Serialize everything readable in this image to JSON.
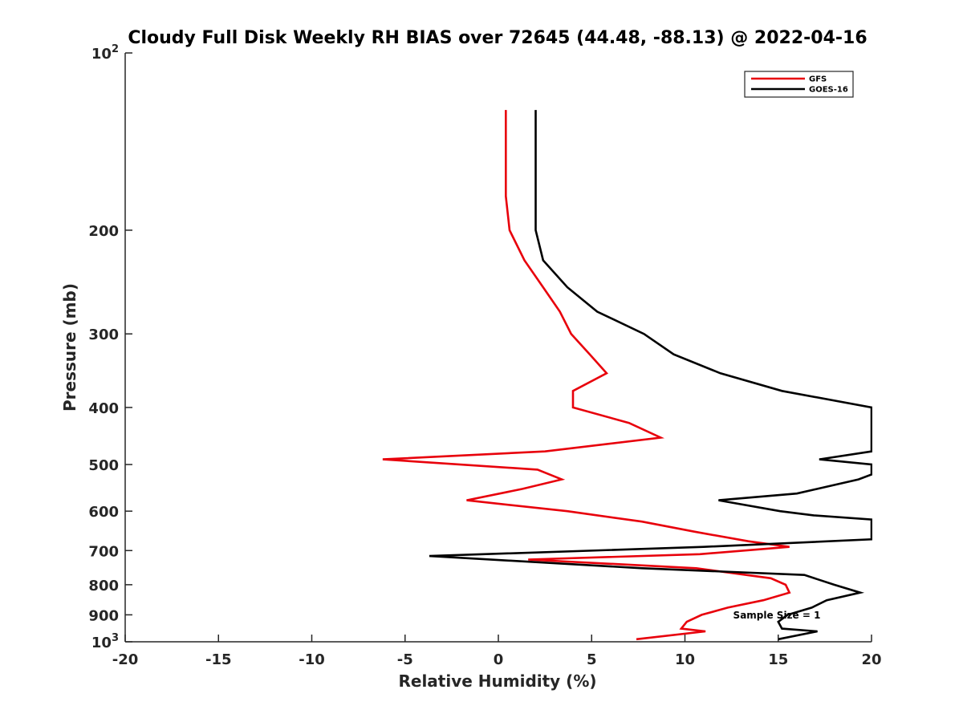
{
  "chart_data": {
    "type": "line",
    "title": "Cloudy Full Disk Weekly RH BIAS over 72645 (44.48, -88.13) @ 2022-04-16",
    "xlabel": "Relative Humidity (%)",
    "ylabel": "Pressure (mb)",
    "xlim": [
      -20,
      20
    ],
    "ylim": [
      100,
      1000
    ],
    "yscale": "log",
    "y_reversed": true,
    "grid": false,
    "legend_position": "top-right",
    "xticks": [
      -20,
      -15,
      -10,
      -5,
      0,
      5,
      10,
      15,
      20
    ],
    "xtick_labels": [
      "-20",
      "-15",
      "-10",
      "-5",
      "0",
      "5",
      "10",
      "15",
      "20"
    ],
    "ytick_labels": [
      {
        "p": 100,
        "base": "10",
        "exp": "2"
      },
      {
        "p": 200,
        "base": "200",
        "exp": ""
      },
      {
        "p": 300,
        "base": "300",
        "exp": ""
      },
      {
        "p": 400,
        "base": "400",
        "exp": ""
      },
      {
        "p": 500,
        "base": "500",
        "exp": ""
      },
      {
        "p": 600,
        "base": "600",
        "exp": ""
      },
      {
        "p": 700,
        "base": "700",
        "exp": ""
      },
      {
        "p": 800,
        "base": "800",
        "exp": ""
      },
      {
        "p": 900,
        "base": "900",
        "exp": ""
      },
      {
        "p": 1000,
        "base": "10",
        "exp": "3"
      }
    ],
    "annotation": "Sample Size = 1",
    "series": [
      {
        "name": "GFS",
        "color": "#e8000b",
        "points": [
          [
            0.4,
            125
          ],
          [
            0.4,
            150
          ],
          [
            0.4,
            175
          ],
          [
            0.6,
            200
          ],
          [
            1.4,
            225
          ],
          [
            2.4,
            250
          ],
          [
            3.3,
            275
          ],
          [
            3.9,
            300
          ],
          [
            4.9,
            325
          ],
          [
            5.8,
            350
          ],
          [
            4.0,
            375
          ],
          [
            4.0,
            400
          ],
          [
            7.0,
            425
          ],
          [
            8.7,
            450
          ],
          [
            2.5,
            475
          ],
          [
            -6.2,
            490
          ],
          [
            2.1,
            510
          ],
          [
            3.4,
            530
          ],
          [
            1.3,
            550
          ],
          [
            -1.7,
            575
          ],
          [
            3.7,
            600
          ],
          [
            7.7,
            625
          ],
          [
            10.5,
            650
          ],
          [
            13.4,
            675
          ],
          [
            15.6,
            690
          ],
          [
            10.8,
            710
          ],
          [
            1.6,
            725
          ],
          [
            10.6,
            750
          ],
          [
            14.6,
            780
          ],
          [
            15.4,
            800
          ],
          [
            15.6,
            825
          ],
          [
            14.2,
            850
          ],
          [
            12.3,
            875
          ],
          [
            10.9,
            900
          ],
          [
            10.1,
            925
          ],
          [
            9.8,
            950
          ],
          [
            11.1,
            960
          ],
          [
            7.4,
            990
          ]
        ]
      },
      {
        "name": "GOES-16",
        "color": "#000000",
        "points": [
          [
            2.0,
            125
          ],
          [
            2.0,
            150
          ],
          [
            2.0,
            175
          ],
          [
            2.0,
            200
          ],
          [
            2.4,
            225
          ],
          [
            3.7,
            250
          ],
          [
            5.3,
            275
          ],
          [
            7.8,
            300
          ],
          [
            9.4,
            325
          ],
          [
            11.9,
            350
          ],
          [
            15.2,
            375
          ],
          [
            20.0,
            400
          ],
          [
            20.0,
            475
          ],
          [
            17.2,
            490
          ],
          [
            20.0,
            500
          ],
          [
            20.0,
            520
          ],
          [
            19.3,
            530
          ],
          [
            16.0,
            560
          ],
          [
            11.8,
            575
          ],
          [
            15.1,
            600
          ],
          [
            16.9,
            610
          ],
          [
            20.0,
            620
          ],
          [
            20.0,
            670
          ],
          [
            11.0,
            690
          ],
          [
            -3.7,
            715
          ],
          [
            7.7,
            750
          ],
          [
            16.4,
            770
          ],
          [
            18.0,
            800
          ],
          [
            19.4,
            825
          ],
          [
            17.6,
            850
          ],
          [
            16.8,
            875
          ],
          [
            15.5,
            900
          ],
          [
            15.0,
            925
          ],
          [
            15.2,
            950
          ],
          [
            17.1,
            960
          ],
          [
            15.0,
            990
          ]
        ]
      }
    ]
  }
}
